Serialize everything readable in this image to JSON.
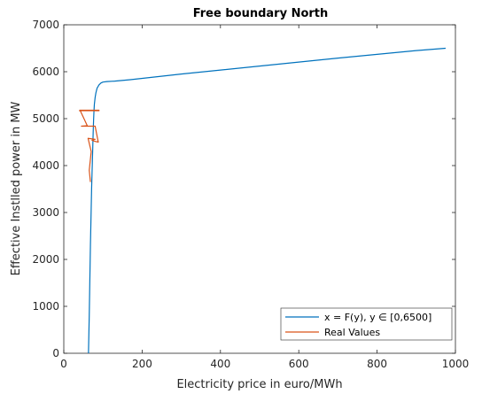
{
  "chart_data": {
    "type": "line",
    "title": "Free boundary North",
    "xlabel": "Electricity price in euro/MWh",
    "ylabel": "Effective Instlled power in MW",
    "xlim": [
      0,
      1000
    ],
    "ylim": [
      0,
      7000
    ],
    "xticks": [
      0,
      200,
      400,
      600,
      800,
      1000
    ],
    "yticks": [
      0,
      1000,
      2000,
      3000,
      4000,
      5000,
      6000,
      7000
    ],
    "grid": false,
    "legend_position": "bottom-right",
    "series": [
      {
        "name": "x = F(y), y ∈ [0,6500]",
        "color": "#0072BD",
        "x": [
          63,
          64,
          65,
          66,
          67,
          68,
          69,
          70,
          71,
          72,
          73,
          74,
          75,
          76,
          77,
          78,
          80,
          82,
          85,
          90,
          95,
          100,
          110,
          130,
          170,
          300,
          500,
          700,
          900,
          975
        ],
        "y": [
          0,
          400,
          800,
          1300,
          1800,
          2300,
          2700,
          3100,
          3500,
          3800,
          4100,
          4400,
          4700,
          4950,
          5150,
          5300,
          5450,
          5550,
          5650,
          5720,
          5760,
          5780,
          5790,
          5800,
          5830,
          5950,
          6120,
          6290,
          6450,
          6500
        ]
      },
      {
        "name": "Real Values",
        "color": "#D95319",
        "x": [
          40,
          90,
          40,
          90,
          42,
          60,
          45,
          80,
          88,
          78,
          72,
          80,
          62,
          70,
          65,
          68
        ],
        "y": [
          5180,
          5180,
          5170,
          5170,
          5170,
          4850,
          4840,
          4840,
          4500,
          4520,
          4540,
          4560,
          4580,
          4300,
          3900,
          3650
        ]
      }
    ]
  }
}
